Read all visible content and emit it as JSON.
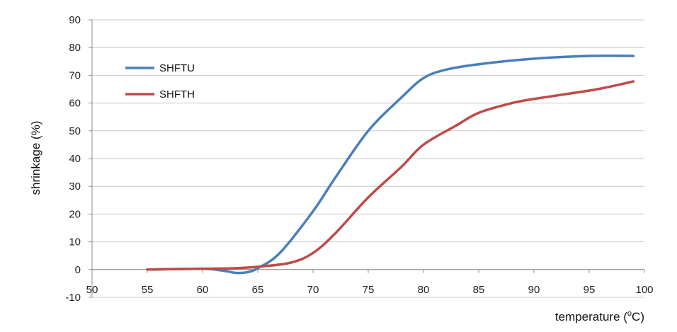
{
  "chart_data": {
    "type": "line",
    "title": "",
    "xlabel": "temperature (",
    "xlabel_sup": "o",
    "xlabel_unit": "C)",
    "ylabel": "shrinkage (%)",
    "xlim": [
      50,
      100
    ],
    "ylim": [
      -10,
      90
    ],
    "x_ticks": [
      50,
      55,
      60,
      65,
      70,
      75,
      80,
      85,
      90,
      95,
      100
    ],
    "y_ticks": [
      -10,
      0,
      10,
      20,
      30,
      40,
      50,
      60,
      70,
      80,
      90
    ],
    "grid": true,
    "legend_position": "top-left",
    "series": [
      {
        "name": "SHFTU",
        "color": "#4a7ebb",
        "points": [
          [
            55,
            0
          ],
          [
            60,
            0.3
          ],
          [
            62,
            -0.5
          ],
          [
            63,
            -1.2
          ],
          [
            64,
            -1
          ],
          [
            65,
            0.5
          ],
          [
            67,
            6
          ],
          [
            70,
            21
          ],
          [
            72,
            33
          ],
          [
            75,
            50
          ],
          [
            78,
            62
          ],
          [
            80,
            69
          ],
          [
            82,
            72
          ],
          [
            85,
            74
          ],
          [
            90,
            76
          ],
          [
            95,
            77
          ],
          [
            99,
            77
          ]
        ]
      },
      {
        "name": "SHFTH",
        "color": "#be4b48",
        "points": [
          [
            55,
            0
          ],
          [
            60,
            0.3
          ],
          [
            63,
            0.5
          ],
          [
            65,
            1
          ],
          [
            68,
            2.5
          ],
          [
            70,
            6
          ],
          [
            72,
            13
          ],
          [
            75,
            26
          ],
          [
            78,
            37
          ],
          [
            80,
            45
          ],
          [
            83,
            52
          ],
          [
            85,
            56.5
          ],
          [
            88,
            60
          ],
          [
            90,
            61.5
          ],
          [
            95,
            64.5
          ],
          [
            97,
            66
          ],
          [
            99,
            67.8
          ]
        ]
      }
    ]
  }
}
